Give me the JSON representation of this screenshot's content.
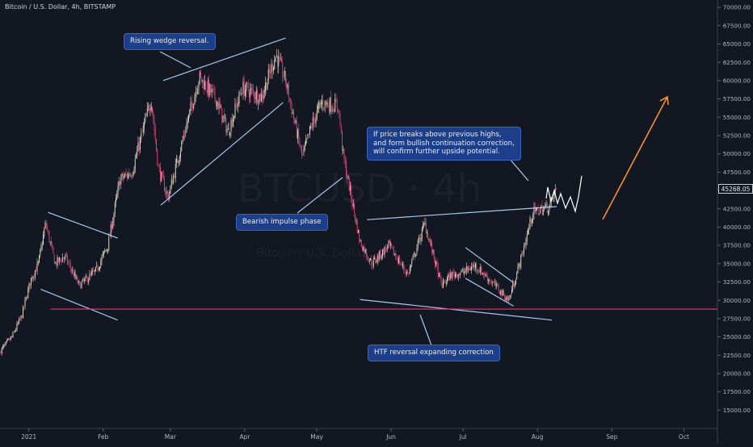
{
  "header": {
    "title": "Bitcoin / U.S. Dollar, 4h, BITSTAMP"
  },
  "watermark": {
    "symbol": "BTCUSD · 4h",
    "sub": "Bitcoin / U.S. Dollar"
  },
  "annotations": {
    "rising_wedge": "Rising wedge reversal.",
    "bearish_impulse": "Bearish impulse phase",
    "breakout_note": "If price breaks above previous highs,\nand form bullish continuation correction,\nwill confirm further upside potential.",
    "htf_reversal": "HTF reversal expanding correction"
  },
  "price_tag": "45268.05",
  "colors": {
    "background": "#131722",
    "up_candle": "#e9e0c8",
    "down_candle": "#d6487a",
    "trendline": "#a8c8f0",
    "support_line": "#e8356b",
    "projection_arrow": "#f0912e",
    "projection_path": "#ffffff",
    "callout_fill": "#1d3f8a"
  },
  "chart_data": {
    "type": "line",
    "title": "Bitcoin / U.S. Dollar, 4h, BITSTAMP",
    "xlabel": "",
    "ylabel": "",
    "x_ticks": [
      "2021",
      "Feb",
      "Mar",
      "Apr",
      "May",
      "Jun",
      "Jul",
      "Aug",
      "Sep",
      "Oct"
    ],
    "y_ticks": [
      "70000.00",
      "67500.00",
      "65000.00",
      "62500.00",
      "60000.00",
      "57500.00",
      "55000.00",
      "52500.00",
      "50000.00",
      "47500.00",
      "45000.00",
      "42500.00",
      "40000.00",
      "37500.00",
      "35000.00",
      "32500.00",
      "30000.00",
      "27500.00",
      "25000.00",
      "22500.00",
      "20000.00",
      "17500.00",
      "15000.00"
    ],
    "ylim": [
      12500,
      71000
    ],
    "xlim": [
      "2020-12-20",
      "2021-10-15"
    ],
    "grid": false,
    "series": [
      {
        "x": [
          "2020-12-20",
          "2020-12-25",
          "2020-12-29",
          "2021-01-02",
          "2021-01-05",
          "2021-01-08",
          "2021-01-12",
          "2021-01-16",
          "2021-01-22",
          "2021-01-29",
          "2021-02-03",
          "2021-02-08",
          "2021-02-13",
          "2021-02-21",
          "2021-02-24",
          "2021-02-28",
          "2021-03-05",
          "2021-03-13",
          "2021-03-20",
          "2021-03-25",
          "2021-03-31",
          "2021-04-08",
          "2021-04-14",
          "2021-04-18",
          "2021-04-25",
          "2021-04-29",
          "2021-05-03",
          "2021-05-10",
          "2021-05-12",
          "2021-05-19",
          "2021-05-24",
          "2021-05-31",
          "2021-06-08",
          "2021-06-15",
          "2021-06-22",
          "2021-06-26",
          "2021-07-01",
          "2021-07-06",
          "2021-07-12",
          "2021-07-20",
          "2021-07-25",
          "2021-07-30",
          "2021-08-06",
          "2021-08-09"
        ],
        "values": [
          23000,
          25000,
          27800,
          33000,
          35000,
          40500,
          35000,
          36000,
          32000,
          34000,
          37500,
          46500,
          47500,
          57500,
          48000,
          44000,
          50500,
          60500,
          57500,
          53000,
          59000,
          57800,
          63500,
          60000,
          49500,
          54000,
          57000,
          56500,
          49800,
          38000,
          35000,
          37500,
          33500,
          40500,
          32000,
          33500,
          33800,
          34800,
          32800,
          30000,
          35500,
          42000,
          42800,
          45300
        ]
      }
    ],
    "trendlines": [
      {
        "name": "wedge-upper",
        "from": [
          "2021-02-26",
          60000
        ],
        "to": [
          "2021-04-18",
          65800
        ]
      },
      {
        "name": "wedge-lower",
        "from": [
          "2021-02-25",
          43000
        ],
        "to": [
          "2021-04-17",
          57000
        ]
      },
      {
        "name": "flag-upper",
        "from": [
          "2021-01-09",
          42000
        ],
        "to": [
          "2021-02-07",
          38500
        ]
      },
      {
        "name": "flag-lower",
        "from": [
          "2021-01-06",
          31500
        ],
        "to": [
          "2021-02-07",
          27300
        ]
      },
      {
        "name": "htf-upper",
        "from": [
          "2021-05-22",
          41000
        ],
        "to": [
          "2021-08-09",
          42800
        ]
      },
      {
        "name": "htf-lower",
        "from": [
          "2021-05-19",
          30100
        ],
        "to": [
          "2021-08-07",
          27300
        ]
      },
      {
        "name": "channel-upper",
        "from": [
          "2021-07-02",
          37200
        ],
        "to": [
          "2021-07-22",
          32400
        ]
      },
      {
        "name": "channel-lower",
        "from": [
          "2021-07-02",
          33000
        ],
        "to": [
          "2021-07-22",
          29200
        ]
      }
    ],
    "support_level": 28800,
    "last_price": 45268.05
  }
}
